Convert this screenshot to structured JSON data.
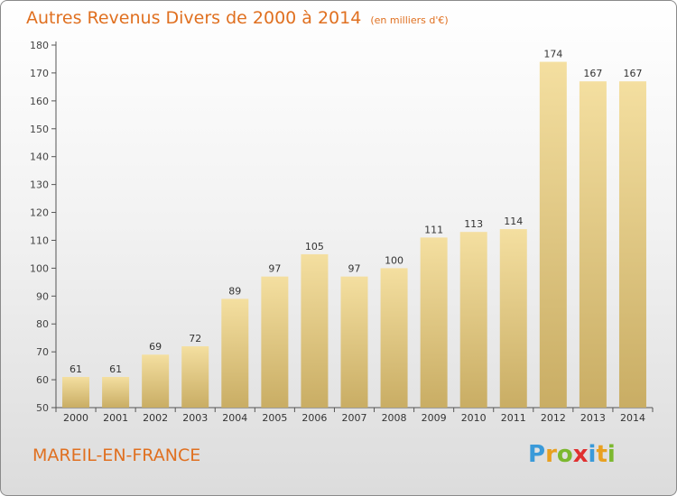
{
  "header": {
    "title": "Autres Revenus Divers de 2000 à 2014",
    "unit": "(en milliers d'€)"
  },
  "footer": {
    "commune": "MAREIL-EN-FRANCE",
    "logo_letters": [
      "P",
      "r",
      "o",
      "x",
      "i",
      "t",
      "i"
    ],
    "logo_colors": [
      "#3a9ad9",
      "#e8a020",
      "#7cb82f",
      "#e03030",
      "#3a9ad9",
      "#e8a020",
      "#7cb82f"
    ]
  },
  "colors": {
    "title": "#e07020",
    "bar_light": "#f4dfa0",
    "bar_dark": "#c9ad64"
  },
  "chart_data": {
    "type": "bar",
    "title": "Autres Revenus Divers de 2000 à 2014",
    "categories": [
      "2000",
      "2001",
      "2002",
      "2003",
      "2004",
      "2005",
      "2006",
      "2007",
      "2008",
      "2009",
      "2010",
      "2011",
      "2012",
      "2013",
      "2014"
    ],
    "values": [
      61,
      61,
      69,
      72,
      89,
      97,
      105,
      97,
      100,
      111,
      113,
      114,
      174,
      167,
      167
    ],
    "ylim": [
      50,
      180
    ],
    "yticks": [
      50,
      60,
      70,
      80,
      90,
      100,
      110,
      120,
      130,
      140,
      150,
      160,
      170,
      180
    ],
    "grid": false,
    "data_labels": true
  }
}
